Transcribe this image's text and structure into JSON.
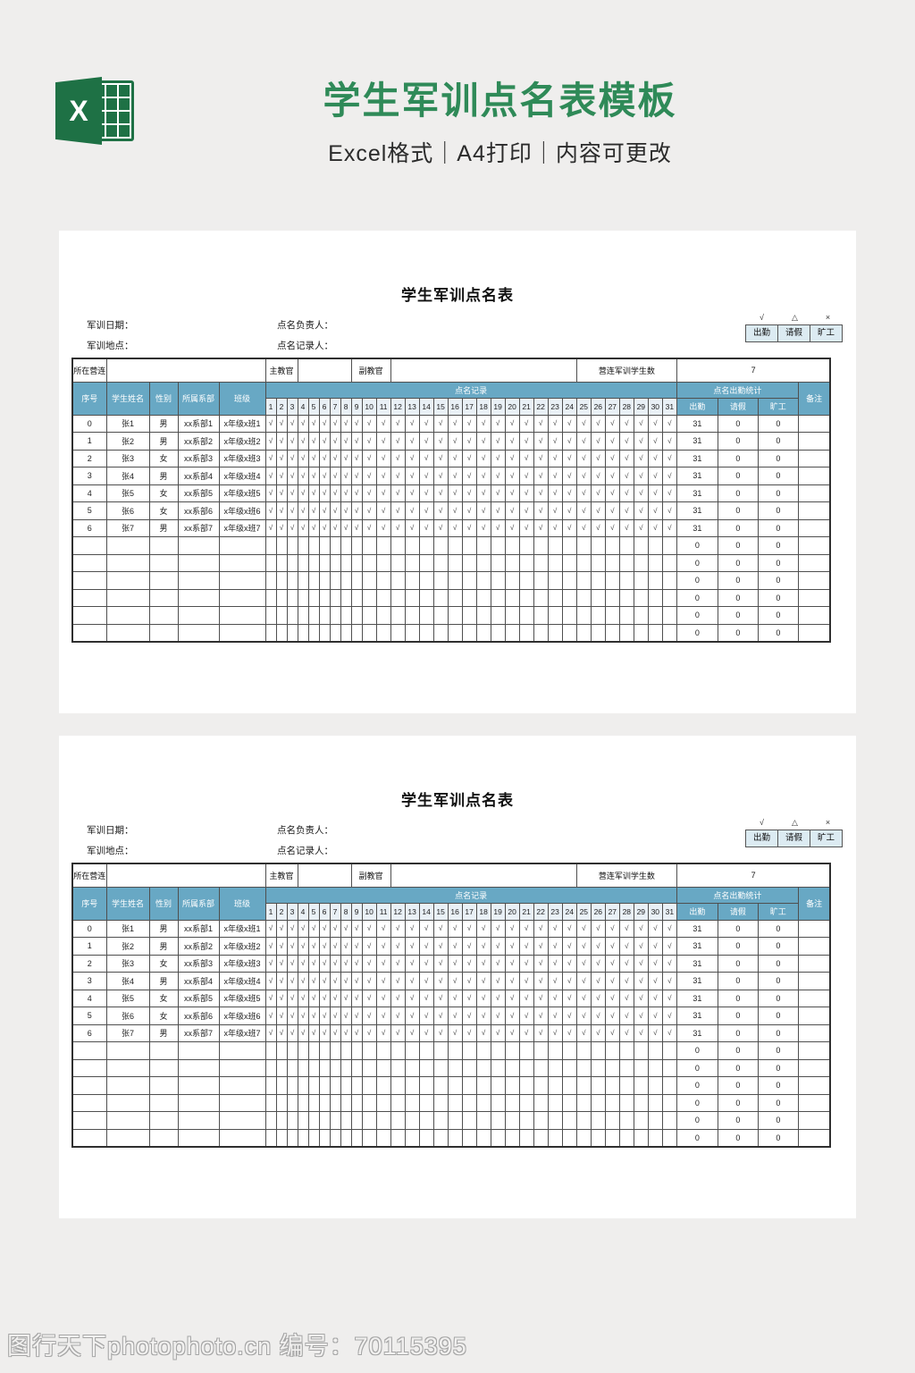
{
  "page": {
    "bg": "#efeeed",
    "header": {
      "excel_x": "X",
      "title": "学生军训点名表模板",
      "subtitle": "Excel格式｜A4打印｜内容可更改",
      "title_color": "#2f8a58"
    },
    "footer": {
      "watermark": "图行天下photophoto.cn 编号：70115395"
    }
  },
  "sheet": {
    "title": "学生军训点名表",
    "info": {
      "date_label": "军训日期：",
      "location_label": "军训地点：",
      "leader_label": "点名负责人：",
      "recorder_label": "点名记录人："
    },
    "legend": {
      "items": [
        {
          "symbol": "√",
          "label": "出勤"
        },
        {
          "symbol": "△",
          "label": "请假"
        },
        {
          "symbol": "×",
          "label": "旷工"
        }
      ]
    },
    "company_row": {
      "unit_label": "所在营连",
      "unit_value": "",
      "chief_label": "主教官",
      "chief_value": "",
      "deputy_label": "副教官",
      "deputy_value": "",
      "count_label": "营连军训学生数",
      "count_value": "7"
    },
    "columns": {
      "index": "序号",
      "name": "学生姓名",
      "gender": "性别",
      "department": "所属系部",
      "class": "班级",
      "record": "点名记录",
      "stats": "点名出勤统计",
      "attend": "出勤",
      "leave": "请假",
      "absent": "旷工",
      "remark": "备注"
    },
    "days": [
      1,
      2,
      3,
      4,
      5,
      6,
      7,
      8,
      9,
      10,
      11,
      12,
      13,
      14,
      15,
      16,
      17,
      18,
      19,
      20,
      21,
      22,
      23,
      24,
      25,
      26,
      27,
      28,
      29,
      30,
      31
    ],
    "rows": [
      {
        "no": "0",
        "name": "张1",
        "gender": "男",
        "dept": "xx系部1",
        "cls": "x年级x班1",
        "mark": "√",
        "attend": "31",
        "leave": "0",
        "absent": "0",
        "remark": ""
      },
      {
        "no": "1",
        "name": "张2",
        "gender": "男",
        "dept": "xx系部2",
        "cls": "x年级x班2",
        "mark": "√",
        "attend": "31",
        "leave": "0",
        "absent": "0",
        "remark": ""
      },
      {
        "no": "2",
        "name": "张3",
        "gender": "女",
        "dept": "xx系部3",
        "cls": "x年级x班3",
        "mark": "√",
        "attend": "31",
        "leave": "0",
        "absent": "0",
        "remark": ""
      },
      {
        "no": "3",
        "name": "张4",
        "gender": "男",
        "dept": "xx系部4",
        "cls": "x年级x班4",
        "mark": "√",
        "attend": "31",
        "leave": "0",
        "absent": "0",
        "remark": ""
      },
      {
        "no": "4",
        "name": "张5",
        "gender": "女",
        "dept": "xx系部5",
        "cls": "x年级x班5",
        "mark": "√",
        "attend": "31",
        "leave": "0",
        "absent": "0",
        "remark": ""
      },
      {
        "no": "5",
        "name": "张6",
        "gender": "女",
        "dept": "xx系部6",
        "cls": "x年级x班6",
        "mark": "√",
        "attend": "31",
        "leave": "0",
        "absent": "0",
        "remark": ""
      },
      {
        "no": "6",
        "name": "张7",
        "gender": "男",
        "dept": "xx系部7",
        "cls": "x年级x班7",
        "mark": "√",
        "attend": "31",
        "leave": "0",
        "absent": "0",
        "remark": ""
      },
      {
        "no": "",
        "name": "",
        "gender": "",
        "dept": "",
        "cls": "",
        "mark": "",
        "attend": "0",
        "leave": "0",
        "absent": "0",
        "remark": ""
      },
      {
        "no": "",
        "name": "",
        "gender": "",
        "dept": "",
        "cls": "",
        "mark": "",
        "attend": "0",
        "leave": "0",
        "absent": "0",
        "remark": ""
      },
      {
        "no": "",
        "name": "",
        "gender": "",
        "dept": "",
        "cls": "",
        "mark": "",
        "attend": "0",
        "leave": "0",
        "absent": "0",
        "remark": ""
      },
      {
        "no": "",
        "name": "",
        "gender": "",
        "dept": "",
        "cls": "",
        "mark": "",
        "attend": "0",
        "leave": "0",
        "absent": "0",
        "remark": ""
      },
      {
        "no": "",
        "name": "",
        "gender": "",
        "dept": "",
        "cls": "",
        "mark": "",
        "attend": "0",
        "leave": "0",
        "absent": "0",
        "remark": ""
      },
      {
        "no": "",
        "name": "",
        "gender": "",
        "dept": "",
        "cls": "",
        "mark": "",
        "attend": "0",
        "leave": "0",
        "absent": "0",
        "remark": ""
      }
    ],
    "colors": {
      "header_bg": "#68a8c4",
      "day_header_bg": "#e9f0f6",
      "legend_bg": "#dcebf2"
    }
  }
}
